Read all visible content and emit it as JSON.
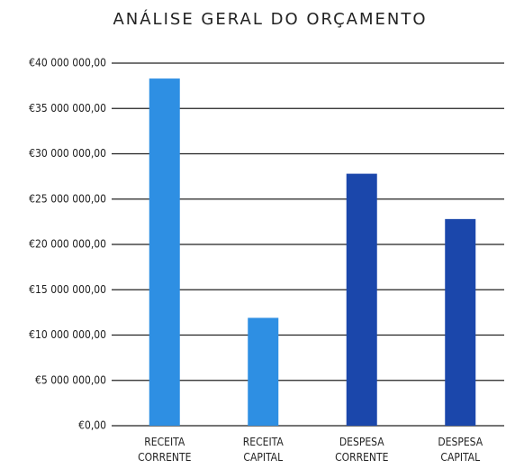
{
  "chart_data": {
    "type": "bar",
    "title": "ANÁLISE GERAL DO ORÇAMENTO",
    "categories": [
      "RECEITA\nCORRENTE",
      "RECEITA\nCAPITAL",
      "DESPESA\nCORRENTE",
      "DESPESA\nCAPITAL"
    ],
    "values": [
      38300000,
      11900000,
      27800000,
      22800000
    ],
    "colors": [
      "#2e8fe3",
      "#2e8fe3",
      "#1b47ab",
      "#1b47ab"
    ],
    "ylim": [
      0,
      40000000
    ],
    "yticks": [
      {
        "value": 0,
        "label": "€0,00"
      },
      {
        "value": 5000000,
        "label": "€5 000 000,00"
      },
      {
        "value": 10000000,
        "label": "€10 000 000,00"
      },
      {
        "value": 15000000,
        "label": "€15 000 000,00"
      },
      {
        "value": 20000000,
        "label": "€20 000 000,00"
      },
      {
        "value": 25000000,
        "label": "€25 000 000,00"
      },
      {
        "value": 30000000,
        "label": "€30 000 000,00"
      },
      {
        "value": 35000000,
        "label": "€35 000 000,00"
      },
      {
        "value": 40000000,
        "label": "€40 000 000,00"
      }
    ],
    "grid": true
  }
}
